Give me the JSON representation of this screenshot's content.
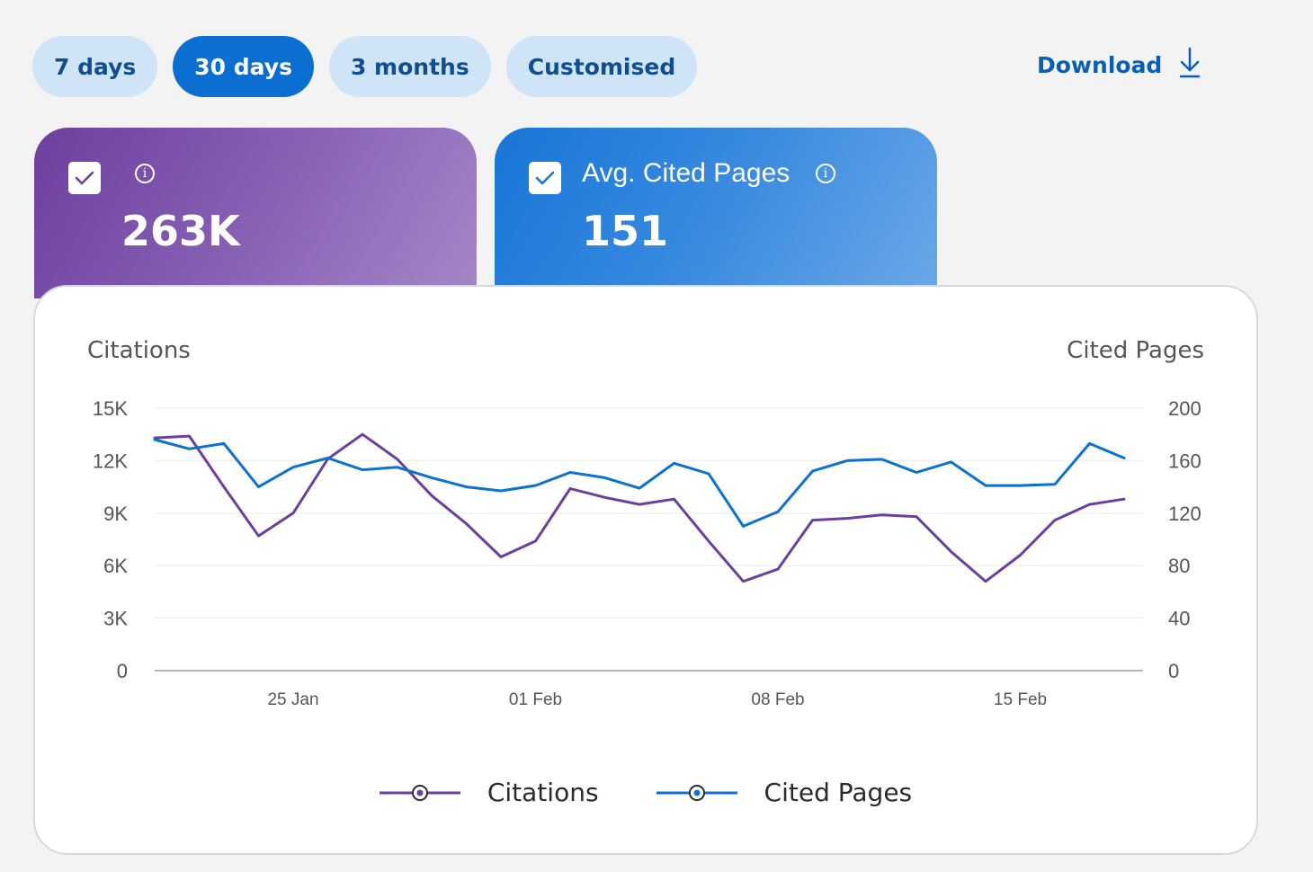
{
  "range_buttons": [
    {
      "label": "7 days",
      "active": false
    },
    {
      "label": "30 days",
      "active": true
    },
    {
      "label": "3 months",
      "active": false
    },
    {
      "label": "Customised",
      "active": false
    }
  ],
  "download": {
    "label": "Download",
    "icon": "download-icon"
  },
  "cards": [
    {
      "title": "",
      "value": "263K",
      "checked": true,
      "color": "#6d3f9f"
    },
    {
      "title": "Avg. Cited Pages",
      "value": "151",
      "checked": true,
      "color": "#1776d6"
    }
  ],
  "chart_data": {
    "type": "line",
    "left_axis": {
      "title": "Citations",
      "ticks": [
        "0",
        "3K",
        "6K",
        "9K",
        "12K",
        "15K"
      ],
      "ylim": [
        0,
        15000
      ]
    },
    "right_axis": {
      "title": "Cited Pages",
      "ticks": [
        "0",
        "40",
        "80",
        "120",
        "160",
        "200"
      ],
      "ylim": [
        0,
        200
      ]
    },
    "x_ticks": [
      {
        "label": "25 Jan",
        "index": 4
      },
      {
        "label": "01 Feb",
        "index": 11
      },
      {
        "label": "08 Feb",
        "index": 18
      },
      {
        "label": "15 Feb",
        "index": 25
      }
    ],
    "series": [
      {
        "name": "Citations",
        "axis": "left",
        "color": "#6b3fa0",
        "values": [
          13300,
          13400,
          10500,
          7700,
          9000,
          12100,
          13500,
          12100,
          10000,
          8400,
          6500,
          7400,
          10400,
          9900,
          9500,
          9800,
          7400,
          5100,
          5800,
          8600,
          8700,
          8900,
          8800,
          6800,
          5100,
          6600,
          8600,
          9500,
          9800
        ]
      },
      {
        "name": "Cited Pages",
        "axis": "right",
        "color": "#0a72d0",
        "values": [
          176,
          169,
          173,
          140,
          155,
          162,
          153,
          155,
          147,
          140,
          137,
          141,
          151,
          147,
          139,
          158,
          150,
          110,
          121,
          152,
          160,
          161,
          151,
          159,
          141,
          141,
          142,
          173,
          162
        ]
      }
    ],
    "grid": true,
    "legend_position": "bottom"
  }
}
